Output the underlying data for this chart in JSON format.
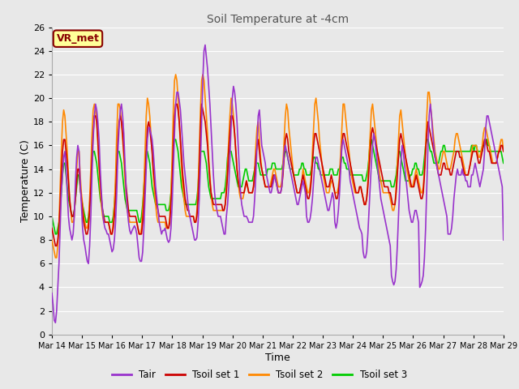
{
  "title": "Soil Temperature at -4cm",
  "xlabel": "Time",
  "ylabel": "Temperature (C)",
  "ylim": [
    0,
    26
  ],
  "yticks": [
    0,
    2,
    4,
    6,
    8,
    10,
    12,
    14,
    16,
    18,
    20,
    22,
    24,
    26
  ],
  "background_color": "#e8e8e8",
  "plot_bg_color": "#e8e8e8",
  "grid_color": "#ffffff",
  "annotation_text": "VR_met",
  "annotation_box_color": "#ffff99",
  "annotation_border_color": "#880000",
  "legend_entries": [
    "Tair",
    "Tsoil set 1",
    "Tsoil set 2",
    "Tsoil set 3"
  ],
  "colors": [
    "#9933cc",
    "#cc0000",
    "#ff8800",
    "#00cc00"
  ],
  "line_width": 1.2,
  "xtick_labels": [
    "Mar 14",
    "Mar 15",
    "Mar 16",
    "Mar 17",
    "Mar 18",
    "Mar 19",
    "Mar 20",
    "Mar 21",
    "Mar 22",
    "Mar 23",
    "Mar 24",
    "Mar 25",
    "Mar 26",
    "Mar 27",
    "Mar 28",
    "Mar 29"
  ],
  "n_days": 15,
  "pts_per_day": 24,
  "Tair": [
    3.5,
    2.5,
    1.2,
    1.0,
    2.0,
    4.0,
    6.0,
    9.0,
    12.0,
    13.5,
    15.0,
    15.5,
    14.0,
    12.0,
    10.0,
    9.0,
    8.5,
    8.0,
    8.5,
    10.0,
    13.0,
    15.0,
    16.0,
    15.5,
    13.0,
    11.0,
    9.0,
    8.0,
    7.5,
    6.8,
    6.2,
    6.0,
    7.5,
    10.0,
    13.5,
    16.5,
    18.5,
    19.5,
    19.0,
    18.0,
    16.5,
    14.0,
    12.0,
    10.5,
    9.5,
    9.0,
    8.8,
    8.5,
    8.5,
    8.0,
    7.5,
    7.0,
    7.2,
    8.0,
    9.5,
    12.0,
    15.5,
    17.5,
    19.0,
    19.5,
    18.5,
    17.0,
    14.5,
    12.0,
    10.5,
    9.5,
    8.8,
    8.5,
    8.8,
    9.0,
    9.2,
    9.0,
    8.5,
    7.5,
    6.5,
    6.2,
    6.2,
    7.0,
    9.0,
    11.5,
    14.0,
    16.5,
    17.5,
    17.5,
    17.0,
    16.5,
    15.5,
    14.0,
    12.5,
    11.5,
    10.5,
    9.5,
    9.0,
    8.5,
    8.8,
    8.8,
    9.0,
    8.5,
    8.0,
    7.8,
    8.0,
    9.0,
    11.0,
    14.0,
    17.0,
    19.5,
    20.5,
    20.5,
    19.8,
    19.0,
    17.5,
    16.0,
    14.5,
    13.5,
    12.5,
    11.5,
    10.5,
    10.0,
    9.5,
    9.0,
    8.5,
    8.0,
    8.0,
    8.2,
    9.5,
    11.5,
    14.5,
    18.0,
    21.5,
    24.0,
    24.5,
    23.5,
    22.5,
    21.0,
    19.5,
    17.5,
    15.5,
    13.5,
    12.0,
    11.0,
    10.5,
    10.0,
    10.0,
    10.0,
    9.5,
    9.0,
    8.5,
    8.5,
    10.0,
    11.0,
    12.5,
    15.0,
    17.5,
    20.0,
    21.0,
    20.5,
    19.5,
    18.0,
    16.0,
    14.0,
    12.0,
    11.0,
    10.5,
    10.0,
    10.0,
    10.0,
    9.8,
    9.5,
    9.5,
    9.5,
    9.5,
    10.0,
    11.5,
    13.5,
    16.0,
    18.5,
    19.0,
    17.5,
    16.0,
    15.5,
    15.0,
    14.5,
    13.5,
    13.0,
    12.5,
    12.0,
    12.0,
    12.5,
    13.0,
    13.5,
    13.0,
    12.5,
    12.0,
    12.0,
    12.0,
    12.5,
    14.0,
    15.5,
    16.0,
    15.5,
    15.0,
    14.5,
    14.0,
    13.5,
    13.0,
    12.5,
    12.0,
    11.5,
    11.0,
    11.0,
    11.5,
    12.0,
    12.5,
    13.0,
    12.5,
    12.0,
    10.0,
    9.5,
    9.5,
    9.8,
    10.5,
    11.5,
    13.0,
    14.5,
    15.0,
    15.0,
    14.5,
    14.0,
    13.5,
    13.0,
    12.5,
    12.0,
    11.5,
    11.0,
    10.5,
    10.5,
    11.0,
    11.5,
    12.0,
    11.5,
    9.5,
    9.0,
    9.5,
    10.5,
    12.0,
    14.0,
    16.0,
    16.5,
    16.0,
    15.5,
    15.0,
    14.5,
    14.0,
    13.0,
    12.5,
    12.0,
    11.5,
    11.0,
    10.5,
    10.0,
    9.5,
    9.0,
    8.8,
    8.5,
    7.0,
    6.5,
    6.5,
    7.0,
    8.5,
    10.5,
    12.5,
    14.5,
    16.0,
    17.0,
    16.5,
    15.5,
    14.5,
    13.5,
    12.5,
    11.5,
    11.0,
    10.5,
    10.0,
    9.5,
    9.0,
    8.5,
    8.0,
    7.5,
    5.0,
    4.5,
    4.2,
    4.5,
    5.5,
    7.5,
    10.0,
    12.5,
    14.5,
    16.0,
    15.5,
    14.5,
    13.5,
    12.5,
    11.5,
    10.5,
    10.0,
    9.5,
    9.5,
    10.0,
    10.5,
    10.5,
    10.0,
    9.5,
    4.0,
    4.2,
    4.5,
    5.0,
    6.5,
    9.0,
    12.5,
    16.0,
    18.5,
    19.5,
    18.5,
    17.0,
    16.0,
    15.0,
    14.5,
    14.0,
    13.5,
    13.0,
    12.5,
    12.0,
    11.5,
    11.0,
    10.5,
    10.0,
    8.5,
    8.5,
    8.5,
    9.0,
    10.0,
    11.5,
    12.5,
    13.5,
    14.0,
    13.5,
    13.5,
    13.5,
    14.0,
    13.5,
    13.5,
    13.0,
    13.0,
    12.5,
    12.5,
    12.5,
    13.5,
    13.5,
    14.0,
    14.5,
    14.0,
    13.5,
    13.0,
    12.5,
    13.0,
    13.5,
    14.0,
    15.5,
    17.5,
    18.5,
    18.5,
    18.0,
    17.5,
    17.0,
    16.5,
    16.0,
    15.5,
    15.0,
    14.5,
    14.0,
    13.5,
    13.0,
    12.5,
    8.0
  ],
  "Tsoil1": [
    9.0,
    8.5,
    8.0,
    7.5,
    7.5,
    8.0,
    9.0,
    11.0,
    13.5,
    15.5,
    16.5,
    16.5,
    15.5,
    14.5,
    13.0,
    11.5,
    10.5,
    10.0,
    10.0,
    10.5,
    11.5,
    13.0,
    14.0,
    14.0,
    12.5,
    11.5,
    10.5,
    9.5,
    9.0,
    8.5,
    8.5,
    9.0,
    10.5,
    12.5,
    15.0,
    17.0,
    18.5,
    18.5,
    18.0,
    16.5,
    14.5,
    13.0,
    11.5,
    10.5,
    10.0,
    9.5,
    9.5,
    9.5,
    9.5,
    9.0,
    8.5,
    8.5,
    9.0,
    10.0,
    11.5,
    14.0,
    16.5,
    18.0,
    18.5,
    18.0,
    17.0,
    15.5,
    14.0,
    12.5,
    11.5,
    10.5,
    10.0,
    10.0,
    10.0,
    10.0,
    10.0,
    10.0,
    9.5,
    9.0,
    8.5,
    8.5,
    8.5,
    9.5,
    11.0,
    13.0,
    15.5,
    17.5,
    18.0,
    17.5,
    16.5,
    15.5,
    14.0,
    13.0,
    12.0,
    11.0,
    10.5,
    10.0,
    10.0,
    10.0,
    10.0,
    10.0,
    10.0,
    9.5,
    9.0,
    9.0,
    9.5,
    11.0,
    13.0,
    16.0,
    18.5,
    19.5,
    19.5,
    19.0,
    18.0,
    16.5,
    15.0,
    13.5,
    12.5,
    11.5,
    11.0,
    10.5,
    10.5,
    10.0,
    10.0,
    10.0,
    10.0,
    9.5,
    9.5,
    10.0,
    11.5,
    14.0,
    17.5,
    19.5,
    19.0,
    18.5,
    18.0,
    17.0,
    16.0,
    14.5,
    13.0,
    12.0,
    11.5,
    11.0,
    11.0,
    11.0,
    11.0,
    11.0,
    11.0,
    11.0,
    11.0,
    10.5,
    10.5,
    11.0,
    12.0,
    13.5,
    15.5,
    17.0,
    18.5,
    18.5,
    18.0,
    17.0,
    15.5,
    14.0,
    13.0,
    12.5,
    12.0,
    12.0,
    12.0,
    12.0,
    12.5,
    13.0,
    12.5,
    12.0,
    12.0,
    12.0,
    12.0,
    12.5,
    13.5,
    15.0,
    16.0,
    16.5,
    15.5,
    14.5,
    14.0,
    13.5,
    13.0,
    12.5,
    12.5,
    12.5,
    12.5,
    12.5,
    12.5,
    13.0,
    13.5,
    13.5,
    13.0,
    12.5,
    12.0,
    12.0,
    12.0,
    12.5,
    13.5,
    15.0,
    16.5,
    17.0,
    16.5,
    15.5,
    15.0,
    14.5,
    14.0,
    13.5,
    13.0,
    12.5,
    12.0,
    12.0,
    12.0,
    12.5,
    13.0,
    13.5,
    13.0,
    12.5,
    12.0,
    11.5,
    11.5,
    12.0,
    13.0,
    14.5,
    16.0,
    17.0,
    17.0,
    16.5,
    16.0,
    15.5,
    15.0,
    14.5,
    14.0,
    13.5,
    13.0,
    12.5,
    12.5,
    12.5,
    13.0,
    13.5,
    13.0,
    12.5,
    12.0,
    11.5,
    11.5,
    12.0,
    13.0,
    14.5,
    16.0,
    17.0,
    17.0,
    16.5,
    16.0,
    15.5,
    15.0,
    14.5,
    14.0,
    13.5,
    13.0,
    12.5,
    12.0,
    12.0,
    12.0,
    12.5,
    12.5,
    12.0,
    11.5,
    11.0,
    11.0,
    11.5,
    12.5,
    14.0,
    15.5,
    17.0,
    17.5,
    17.0,
    16.5,
    16.0,
    15.5,
    15.0,
    14.5,
    14.0,
    13.5,
    13.0,
    12.5,
    12.5,
    12.5,
    12.5,
    12.0,
    12.0,
    11.5,
    11.0,
    11.0,
    11.0,
    12.0,
    13.5,
    15.0,
    16.5,
    17.0,
    16.5,
    16.0,
    15.5,
    15.0,
    14.5,
    14.0,
    13.5,
    13.0,
    12.5,
    12.5,
    12.5,
    13.0,
    13.5,
    13.0,
    12.5,
    12.0,
    11.5,
    11.5,
    12.0,
    13.5,
    15.5,
    17.0,
    18.0,
    17.5,
    17.0,
    16.5,
    16.0,
    15.5,
    15.0,
    14.5,
    14.0,
    13.5,
    13.5,
    13.5,
    14.0,
    14.5,
    14.5,
    14.0,
    14.0,
    14.0,
    14.0,
    13.5,
    13.5,
    14.0,
    14.5,
    15.0,
    15.5,
    15.5,
    15.5,
    15.0,
    15.0,
    14.5,
    14.0,
    13.5,
    13.5,
    13.5,
    13.5,
    14.0,
    14.5,
    15.0,
    15.5,
    15.5,
    15.5,
    15.5,
    15.0,
    14.5,
    14.5,
    15.0,
    15.5,
    16.0,
    16.5,
    16.5,
    16.0,
    15.5,
    15.5,
    15.0,
    14.5,
    14.5,
    14.5,
    14.5,
    14.5,
    15.0,
    15.5,
    15.5,
    16.0,
    16.0,
    15.5
  ],
  "Tsoil2": [
    8.0,
    7.5,
    7.0,
    6.5,
    6.5,
    7.5,
    9.5,
    12.5,
    15.5,
    18.0,
    19.0,
    18.5,
    17.0,
    15.5,
    13.5,
    11.5,
    10.5,
    9.5,
    9.5,
    10.0,
    12.0,
    14.0,
    15.5,
    15.5,
    13.5,
    12.0,
    11.0,
    10.0,
    9.5,
    9.0,
    9.0,
    9.5,
    11.5,
    14.0,
    17.0,
    19.0,
    19.5,
    19.0,
    18.0,
    16.0,
    14.0,
    12.0,
    11.0,
    10.0,
    9.5,
    9.5,
    9.5,
    9.5,
    9.5,
    9.0,
    8.5,
    8.5,
    9.5,
    11.0,
    13.5,
    17.0,
    19.5,
    19.5,
    19.0,
    18.0,
    16.5,
    15.0,
    13.0,
    11.5,
    10.5,
    10.0,
    9.5,
    9.5,
    9.5,
    9.5,
    9.5,
    9.5,
    9.5,
    9.0,
    8.5,
    8.5,
    9.0,
    10.5,
    12.5,
    15.5,
    18.5,
    20.0,
    19.5,
    18.5,
    17.0,
    15.5,
    13.5,
    12.0,
    11.0,
    10.0,
    9.5,
    9.5,
    9.5,
    9.5,
    9.5,
    9.5,
    9.5,
    9.0,
    9.0,
    9.0,
    10.0,
    12.0,
    15.0,
    19.0,
    21.5,
    22.0,
    21.5,
    20.0,
    18.0,
    16.0,
    14.0,
    12.5,
    11.5,
    10.5,
    10.0,
    10.0,
    10.0,
    10.0,
    10.0,
    10.0,
    10.0,
    9.5,
    9.5,
    10.5,
    12.5,
    15.5,
    19.0,
    21.5,
    22.0,
    21.5,
    20.0,
    18.5,
    17.0,
    15.0,
    13.5,
    12.0,
    11.0,
    10.5,
    10.5,
    10.5,
    10.5,
    10.5,
    10.5,
    10.5,
    10.5,
    10.5,
    10.5,
    11.0,
    12.5,
    14.5,
    16.5,
    18.5,
    20.0,
    19.5,
    18.5,
    17.0,
    15.5,
    14.0,
    13.0,
    12.0,
    11.5,
    11.5,
    11.5,
    12.0,
    12.5,
    13.0,
    12.5,
    12.0,
    12.0,
    12.0,
    12.0,
    12.5,
    14.0,
    16.0,
    17.5,
    18.0,
    16.5,
    15.0,
    14.0,
    13.5,
    13.0,
    12.5,
    12.5,
    12.5,
    12.5,
    12.5,
    13.0,
    13.5,
    14.0,
    14.0,
    13.5,
    13.0,
    12.5,
    12.5,
    12.5,
    13.0,
    14.5,
    16.5,
    18.5,
    19.5,
    19.0,
    17.5,
    16.5,
    15.5,
    14.5,
    13.5,
    13.0,
    12.5,
    12.0,
    12.0,
    12.0,
    12.5,
    13.0,
    14.0,
    13.5,
    13.0,
    12.5,
    12.0,
    12.0,
    12.5,
    13.5,
    15.5,
    17.5,
    19.5,
    20.0,
    19.0,
    18.0,
    16.5,
    15.5,
    14.5,
    13.5,
    13.0,
    12.5,
    12.0,
    12.0,
    12.0,
    12.5,
    13.0,
    13.0,
    12.5,
    12.0,
    12.0,
    12.0,
    12.5,
    13.5,
    15.5,
    17.5,
    19.5,
    19.5,
    18.5,
    17.5,
    16.5,
    15.5,
    14.5,
    13.5,
    13.0,
    12.5,
    12.0,
    12.0,
    12.0,
    12.0,
    12.5,
    12.5,
    12.0,
    11.5,
    11.0,
    11.0,
    11.5,
    13.0,
    15.0,
    17.0,
    19.0,
    19.5,
    18.5,
    17.5,
    16.5,
    15.5,
    14.5,
    13.5,
    13.0,
    12.5,
    12.0,
    12.0,
    12.0,
    12.0,
    12.0,
    12.0,
    11.5,
    11.0,
    10.5,
    10.5,
    11.0,
    12.5,
    14.5,
    16.5,
    18.5,
    19.0,
    18.0,
    17.0,
    16.0,
    15.0,
    14.0,
    13.5,
    13.0,
    12.5,
    12.5,
    12.5,
    13.0,
    13.5,
    14.0,
    13.5,
    13.0,
    12.5,
    12.0,
    12.0,
    12.5,
    14.0,
    16.0,
    18.5,
    20.5,
    20.5,
    19.5,
    18.5,
    17.5,
    16.5,
    15.5,
    15.0,
    14.5,
    14.0,
    14.0,
    14.5,
    15.0,
    15.5,
    15.5,
    15.0,
    14.5,
    14.0,
    14.0,
    14.0,
    14.5,
    15.0,
    15.5,
    16.5,
    17.0,
    17.0,
    16.5,
    16.0,
    15.5,
    15.0,
    14.5,
    14.0,
    13.5,
    13.5,
    13.5,
    14.0,
    14.5,
    15.5,
    16.0,
    16.0,
    16.0,
    16.0,
    15.5,
    15.0,
    15.0,
    15.5,
    16.0,
    17.0,
    17.5,
    17.5,
    17.0,
    16.5,
    16.0,
    15.5,
    15.0,
    14.5,
    14.5,
    14.5,
    14.5,
    15.0,
    15.5,
    16.0,
    16.5,
    16.5,
    15.5
  ],
  "Tsoil3": [
    10.0,
    9.5,
    9.0,
    8.5,
    8.5,
    9.0,
    9.5,
    10.5,
    12.0,
    13.5,
    14.5,
    14.5,
    13.5,
    12.5,
    11.5,
    11.0,
    10.5,
    10.0,
    10.0,
    10.5,
    11.5,
    12.5,
    13.5,
    13.5,
    12.5,
    11.5,
    11.0,
    10.5,
    10.0,
    9.5,
    9.5,
    10.0,
    11.0,
    12.5,
    14.5,
    15.5,
    15.5,
    15.0,
    14.5,
    13.5,
    12.5,
    11.5,
    11.0,
    10.5,
    10.0,
    10.0,
    10.0,
    10.0,
    10.0,
    9.5,
    9.5,
    9.5,
    10.0,
    11.0,
    12.5,
    14.0,
    15.5,
    15.5,
    15.0,
    14.5,
    13.5,
    12.5,
    11.5,
    11.0,
    10.5,
    10.5,
    10.5,
    10.5,
    10.5,
    10.5,
    10.5,
    10.5,
    10.5,
    10.0,
    9.5,
    9.5,
    10.0,
    11.0,
    12.5,
    14.0,
    15.5,
    15.5,
    15.0,
    14.5,
    13.5,
    12.5,
    12.0,
    11.5,
    11.0,
    11.0,
    11.0,
    11.0,
    11.0,
    11.0,
    11.0,
    11.0,
    11.0,
    10.5,
    10.5,
    10.5,
    11.0,
    12.0,
    14.0,
    16.0,
    16.5,
    16.5,
    16.0,
    15.5,
    14.5,
    13.5,
    12.5,
    12.0,
    11.5,
    11.0,
    11.0,
    11.0,
    11.0,
    11.0,
    11.0,
    11.0,
    11.0,
    11.0,
    11.0,
    11.5,
    12.5,
    14.5,
    15.5,
    15.5,
    15.5,
    15.5,
    15.0,
    14.5,
    13.5,
    12.5,
    12.0,
    11.5,
    11.5,
    11.5,
    11.5,
    11.5,
    11.5,
    11.5,
    11.5,
    11.5,
    12.0,
    12.0,
    12.0,
    12.5,
    13.5,
    15.0,
    15.5,
    15.5,
    15.5,
    15.0,
    14.5,
    14.0,
    13.5,
    13.0,
    12.5,
    12.5,
    12.5,
    12.5,
    13.0,
    13.5,
    14.0,
    14.0,
    13.5,
    13.0,
    13.0,
    13.0,
    13.0,
    13.5,
    14.0,
    14.5,
    14.5,
    14.5,
    14.0,
    13.5,
    13.5,
    13.5,
    13.5,
    13.5,
    13.5,
    14.0,
    14.0,
    14.0,
    14.0,
    14.5,
    14.5,
    14.5,
    14.0,
    14.0,
    14.0,
    14.0,
    14.0,
    14.0,
    14.5,
    15.0,
    15.5,
    15.5,
    15.0,
    14.5,
    14.0,
    14.0,
    14.0,
    13.5,
    13.5,
    13.5,
    13.5,
    13.5,
    14.0,
    14.0,
    14.5,
    14.5,
    14.0,
    14.0,
    13.5,
    13.5,
    13.5,
    13.5,
    14.0,
    14.5,
    15.0,
    15.0,
    14.5,
    14.5,
    14.0,
    14.0,
    13.5,
    13.5,
    13.5,
    13.5,
    13.5,
    13.5,
    13.5,
    13.5,
    14.0,
    14.0,
    14.0,
    13.5,
    13.5,
    13.5,
    13.5,
    14.0,
    14.0,
    14.5,
    15.0,
    15.0,
    14.5,
    14.5,
    14.0,
    14.0,
    14.0,
    13.5,
    13.5,
    13.5,
    13.5,
    13.5,
    13.5,
    13.5,
    13.5,
    13.5,
    13.5,
    13.5,
    13.0,
    13.0,
    13.0,
    13.5,
    14.0,
    15.0,
    16.5,
    16.5,
    16.0,
    15.5,
    15.0,
    14.5,
    14.0,
    13.5,
    13.0,
    13.0,
    13.0,
    13.0,
    13.0,
    13.0,
    13.0,
    13.0,
    13.0,
    13.0,
    12.5,
    12.5,
    12.5,
    13.0,
    13.5,
    14.5,
    15.5,
    15.5,
    15.0,
    14.5,
    14.0,
    13.5,
    13.0,
    13.0,
    13.0,
    13.0,
    13.5,
    13.5,
    14.0,
    14.0,
    14.5,
    14.5,
    14.0,
    14.0,
    13.5,
    13.5,
    13.5,
    14.0,
    15.0,
    16.0,
    16.5,
    16.5,
    16.0,
    15.5,
    15.5,
    15.0,
    14.5,
    14.5,
    14.5,
    14.5,
    14.5,
    15.0,
    15.5,
    15.5,
    16.0,
    16.0,
    15.5,
    15.5,
    15.5,
    15.5,
    15.5,
    15.5,
    15.5,
    15.5,
    15.5,
    15.5,
    15.5,
    15.5,
    15.5,
    15.5,
    15.5,
    15.5,
    15.5,
    15.5,
    15.5,
    15.5,
    15.5,
    15.5,
    16.0,
    16.0,
    15.5,
    16.0,
    16.0,
    15.5,
    15.5,
    15.5,
    15.5,
    15.5,
    16.0,
    16.0,
    16.5,
    16.5,
    16.0,
    16.0,
    15.5,
    15.5,
    15.5,
    15.5,
    15.5,
    15.5,
    15.5,
    15.5,
    15.5,
    15.5,
    15.0,
    14.5
  ]
}
